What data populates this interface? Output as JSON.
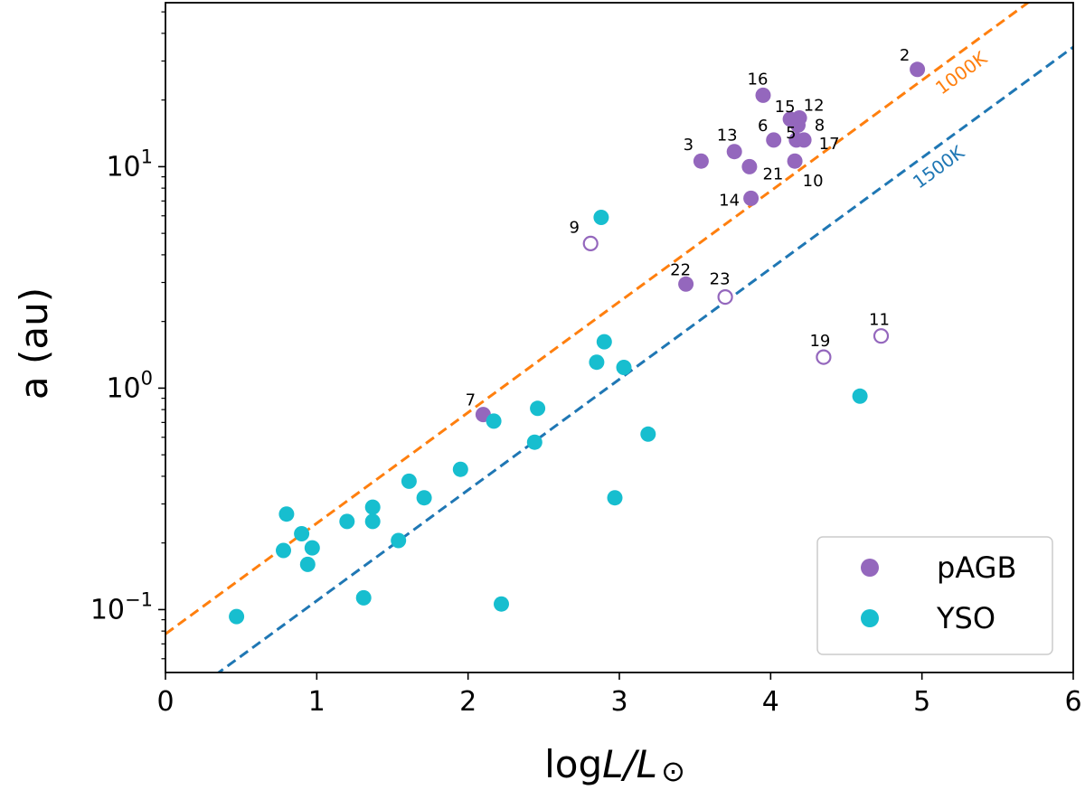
{
  "chart_data": {
    "type": "scatter",
    "xlabel_main": "log",
    "xlabel_italic": "L/L",
    "xlabel_sun": "⊙",
    "ylabel": "a (au)",
    "xlim": [
      0,
      6
    ],
    "ylim": [
      0.052,
      55
    ],
    "yscale": "log",
    "x_ticks": [
      0,
      1,
      2,
      3,
      4,
      5,
      6
    ],
    "x_tick_labels": [
      "0",
      "1",
      "2",
      "3",
      "4",
      "5",
      "6"
    ],
    "y_major_ticks": [
      {
        "value": 0.1,
        "base": "10",
        "exp": "−1"
      },
      {
        "value": 1,
        "base": "10",
        "exp": "0"
      },
      {
        "value": 10,
        "base": "10",
        "exp": "1"
      }
    ],
    "colors": {
      "pAGB": "#9467bd",
      "YSO": "#17becf",
      "line1000": "#ff7f0e",
      "line1500": "#1f77b4"
    },
    "lines": [
      {
        "name": "1000K",
        "label": "1000K",
        "color": "#ff7f0e",
        "intercept_log": -1.11,
        "slope": 0.5,
        "label_x": 5.2
      },
      {
        "name": "1500K",
        "label": "1500K",
        "color": "#1f77b4",
        "intercept_log": -1.46,
        "slope": 0.5,
        "label_x": 5.05
      }
    ],
    "legend": [
      {
        "label": "pAGB",
        "color": "#9467bd"
      },
      {
        "label": "YSO",
        "color": "#17becf"
      }
    ],
    "legend_position": "lower-right",
    "series": [
      {
        "name": "pAGB",
        "points": [
          {
            "x": 4.97,
            "y": 27.5,
            "label": "2",
            "filled": true
          },
          {
            "x": 3.54,
            "y": 10.6,
            "label": "3",
            "filled": true
          },
          {
            "x": 3.76,
            "y": 11.7,
            "label": "13",
            "filled": true
          },
          {
            "x": 3.95,
            "y": 21.0,
            "label": "16",
            "filled": true
          },
          {
            "x": 4.02,
            "y": 13.2,
            "label": "6",
            "filled": true
          },
          {
            "x": 4.13,
            "y": 16.4,
            "label": "15",
            "filled": true
          },
          {
            "x": 4.19,
            "y": 16.6,
            "label": "12",
            "filled": true
          },
          {
            "x": 4.18,
            "y": 15.4,
            "label": "8",
            "filled": true
          },
          {
            "x": 4.17,
            "y": 13.2,
            "label": "5",
            "filled": true
          },
          {
            "x": 4.22,
            "y": 13.2,
            "label": "17",
            "filled": true
          },
          {
            "x": 3.86,
            "y": 10.0,
            "label": "21",
            "filled": true
          },
          {
            "x": 4.16,
            "y": 10.6,
            "label": "10",
            "filled": true
          },
          {
            "x": 3.87,
            "y": 7.2,
            "label": "14",
            "filled": true
          },
          {
            "x": 2.81,
            "y": 4.5,
            "label": "9",
            "filled": false
          },
          {
            "x": 3.44,
            "y": 2.95,
            "label": "22",
            "filled": true
          },
          {
            "x": 3.7,
            "y": 2.58,
            "label": "23",
            "filled": false
          },
          {
            "x": 4.35,
            "y": 1.38,
            "label": "19",
            "filled": false
          },
          {
            "x": 4.73,
            "y": 1.72,
            "label": "11",
            "filled": false
          },
          {
            "x": 2.1,
            "y": 0.76,
            "label": "7",
            "filled": true
          }
        ]
      },
      {
        "name": "YSO",
        "points": [
          {
            "x": 2.88,
            "y": 5.9
          },
          {
            "x": 2.9,
            "y": 1.62
          },
          {
            "x": 2.85,
            "y": 1.31
          },
          {
            "x": 3.03,
            "y": 1.24
          },
          {
            "x": 4.59,
            "y": 0.92
          },
          {
            "x": 2.46,
            "y": 0.81
          },
          {
            "x": 2.17,
            "y": 0.71
          },
          {
            "x": 3.19,
            "y": 0.62
          },
          {
            "x": 2.44,
            "y": 0.57
          },
          {
            "x": 1.95,
            "y": 0.43
          },
          {
            "x": 1.61,
            "y": 0.38
          },
          {
            "x": 1.71,
            "y": 0.32
          },
          {
            "x": 2.97,
            "y": 0.32
          },
          {
            "x": 1.37,
            "y": 0.29
          },
          {
            "x": 0.8,
            "y": 0.27
          },
          {
            "x": 1.2,
            "y": 0.25
          },
          {
            "x": 1.37,
            "y": 0.25
          },
          {
            "x": 0.9,
            "y": 0.22
          },
          {
            "x": 1.54,
            "y": 0.205
          },
          {
            "x": 0.97,
            "y": 0.19
          },
          {
            "x": 0.78,
            "y": 0.185
          },
          {
            "x": 0.94,
            "y": 0.16
          },
          {
            "x": 1.31,
            "y": 0.113
          },
          {
            "x": 2.22,
            "y": 0.106
          },
          {
            "x": 0.47,
            "y": 0.093
          }
        ]
      }
    ]
  }
}
